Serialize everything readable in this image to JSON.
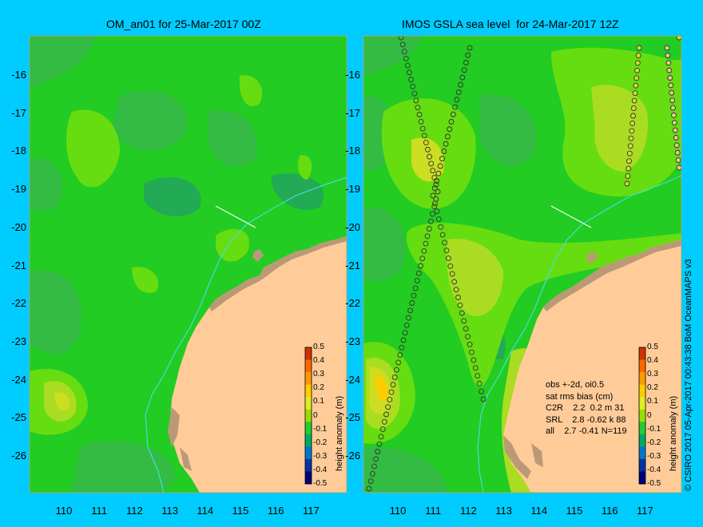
{
  "titles": {
    "left": "OM_an01 for 25-Mar-2017 00Z",
    "right": "IMOS GSLA sea level  for 24-Mar-2017 12Z"
  },
  "axes": {
    "lat_labels": [
      "-16",
      "-17",
      "-18",
      "-19",
      "-20",
      "-21",
      "-22",
      "-23",
      "-24",
      "-25",
      "-26"
    ],
    "lon_labels": [
      "110",
      "111",
      "112",
      "113",
      "114",
      "115",
      "116",
      "117"
    ]
  },
  "colorbar": {
    "title": "height anomaly (m)",
    "ticks": [
      "0.5",
      "0.4",
      "0.3",
      "0.2",
      "0.1",
      "0",
      "-0.1",
      "-0.2",
      "-0.3",
      "-0.4",
      "-0.5"
    ],
    "colors": [
      "#cc3300",
      "#ff6600",
      "#ff9900",
      "#ffcc00",
      "#ddee22",
      "#99dd00",
      "#22cc33",
      "#00aa66",
      "#0077cc",
      "#0033aa",
      "#000077"
    ]
  },
  "stats": {
    "line1": "obs +-2d, oi0.5",
    "line2": "sat rms bias (cm)",
    "row1": "C2R    2.2  0.2 m 31",
    "row2": "SRL    2.8 -0.62 k 88",
    "row3": "all    2.7 -0.41 N=119"
  },
  "credit": "© CSIRO 2017  05-Apr-2017 00:43:38 BoM OceanMAPS v3",
  "colors": {
    "background": "#00ccff",
    "sea_base": "#22cc22",
    "land": "#ffcc99",
    "islands": "#bb9977",
    "shelf_line": "#44dddd"
  }
}
